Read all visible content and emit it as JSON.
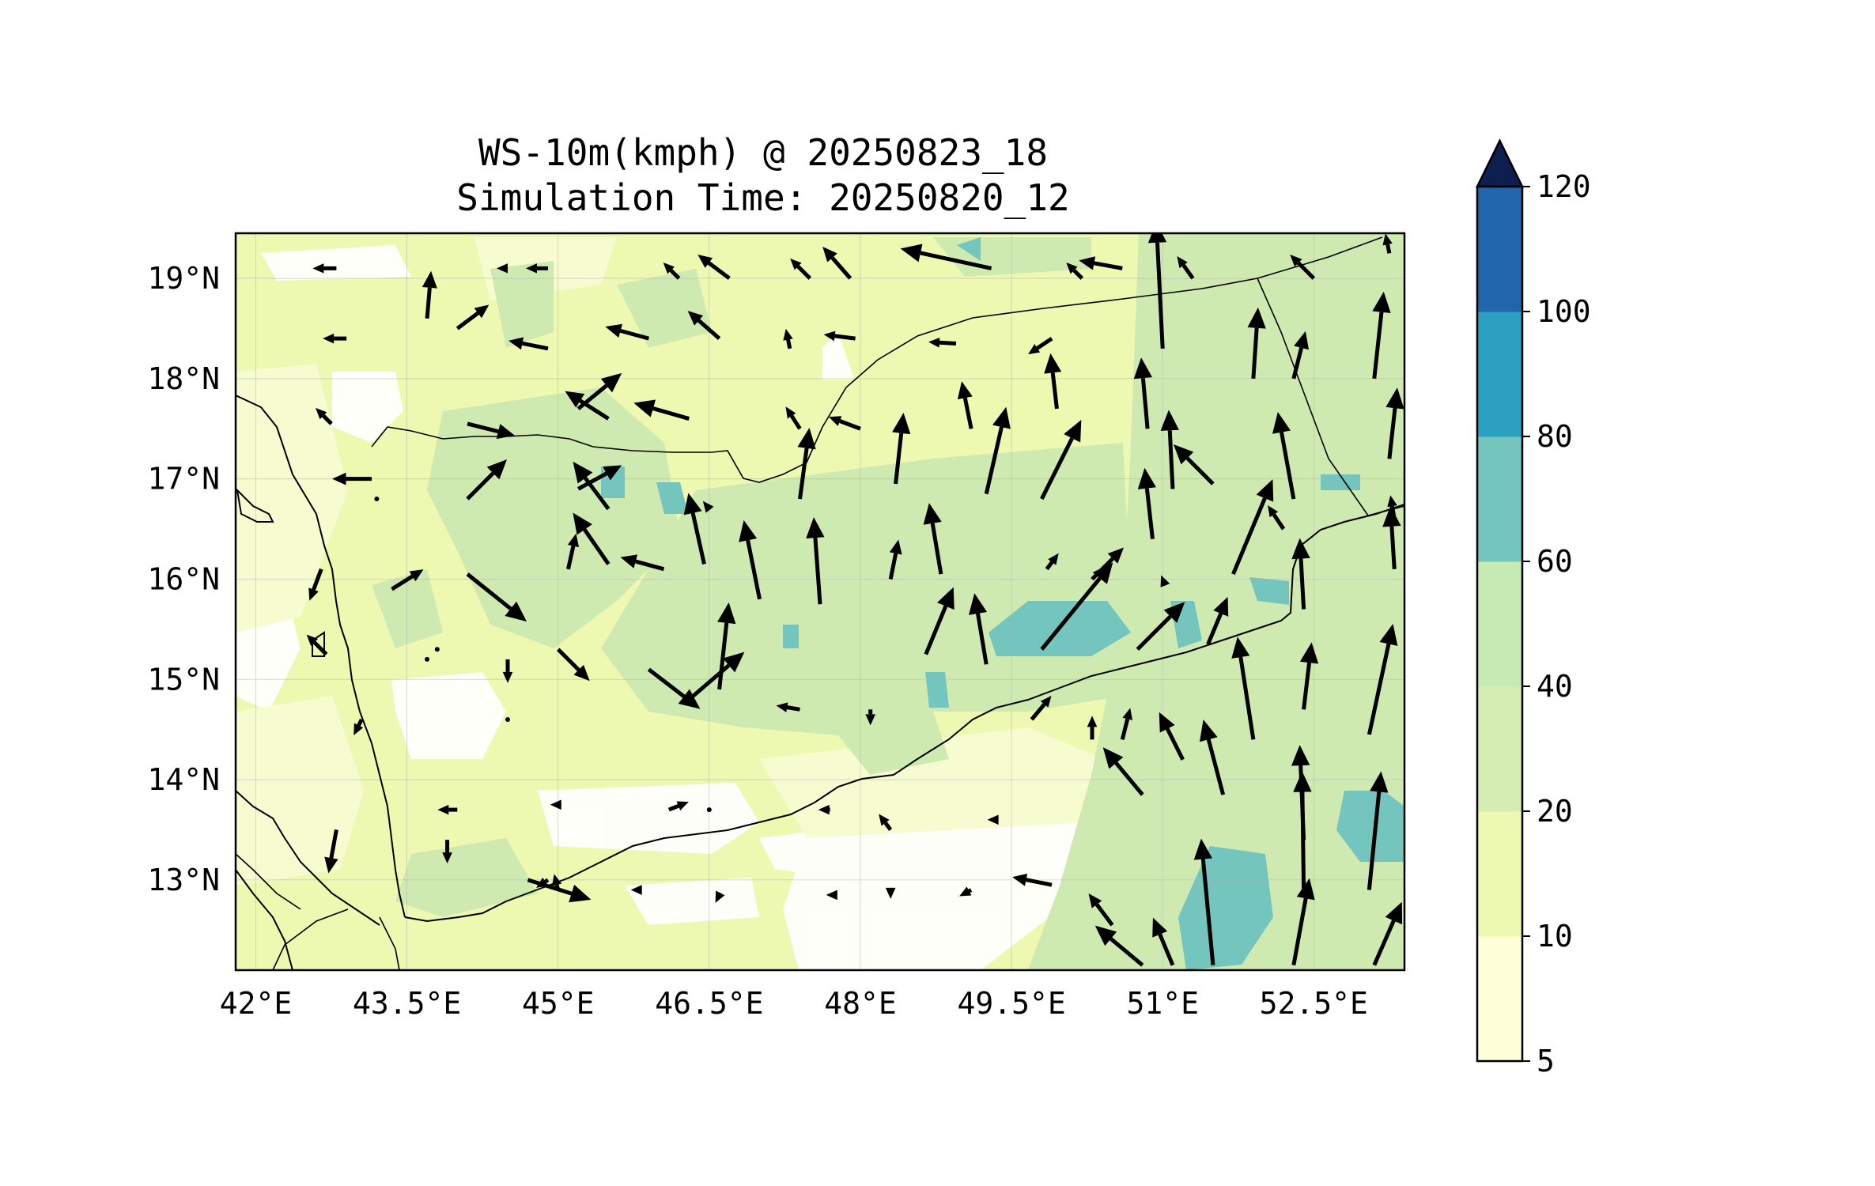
{
  "title": {
    "line1": "WS-10m(kmph) @ 20250823_18",
    "line2": "Simulation Time: 20250820_12"
  },
  "map": {
    "lon_range": [
      41.8,
      53.4
    ],
    "lat_range": [
      12.1,
      19.45
    ],
    "lon_ticks": [
      42,
      43.5,
      45,
      46.5,
      48,
      49.5,
      51,
      52.5
    ],
    "lon_tick_labels": [
      "42°E",
      "43.5°E",
      "45°E",
      "46.5°E",
      "48°E",
      "49.5°E",
      "51°E",
      "52.5°E"
    ],
    "lat_ticks": [
      19,
      18,
      17,
      16,
      15,
      14,
      13
    ],
    "lat_tick_labels": [
      "19°N",
      "18°N",
      "17°N",
      "16°N",
      "15°N",
      "14°N",
      "13°N"
    ],
    "grid": true
  },
  "colorbar": {
    "levels": [
      5,
      10,
      20,
      40,
      60,
      80,
      100,
      120
    ],
    "tick_labels": [
      "5",
      "10",
      "20",
      "40",
      "60",
      "80",
      "100",
      "120"
    ],
    "colors": [
      "#ffffd9",
      "#edf8b1",
      "#d3eeb0",
      "#c7e9b4",
      "#73c5bd",
      "#2da0c2",
      "#2166ac",
      "#1a2a7e"
    ],
    "extend": "max",
    "extend_color": "#0c1f4e"
  },
  "colors": {
    "land_base": "#edf8b1",
    "calm": "#ffffff",
    "very_light": "#f7fcd0",
    "moderate": "#cfeab0",
    "strong": "#73c5bd",
    "coast": "#000000",
    "arrow": "#000000"
  }
}
